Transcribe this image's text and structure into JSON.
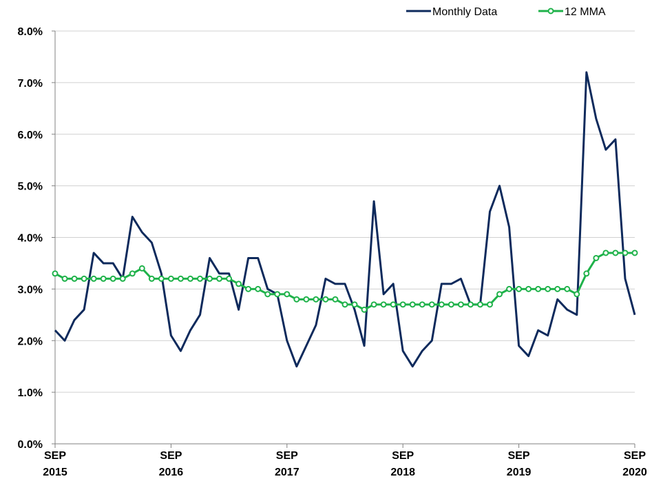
{
  "chart_data": {
    "type": "line",
    "categories": [
      "SEP 2015",
      null,
      null,
      null,
      null,
      null,
      null,
      null,
      null,
      null,
      null,
      null,
      "SEP 2016",
      null,
      null,
      null,
      null,
      null,
      null,
      null,
      null,
      null,
      null,
      null,
      "SEP 2017",
      null,
      null,
      null,
      null,
      null,
      null,
      null,
      null,
      null,
      null,
      null,
      "SEP 2018",
      null,
      null,
      null,
      null,
      null,
      null,
      null,
      null,
      null,
      null,
      null,
      "SEP 2019",
      null,
      null,
      null,
      null,
      null,
      null,
      null,
      null,
      null,
      null,
      null,
      "SEP 2020"
    ],
    "series": [
      {
        "name": "Monthly Data",
        "color": "#0e2a5c",
        "marker": false,
        "values": [
          2.2,
          2.0,
          2.4,
          2.6,
          3.7,
          3.5,
          3.5,
          3.2,
          4.4,
          4.1,
          3.9,
          3.3,
          2.1,
          1.8,
          2.2,
          2.5,
          3.6,
          3.3,
          3.3,
          2.6,
          3.6,
          3.6,
          3.0,
          2.9,
          2.0,
          1.5,
          1.9,
          2.3,
          3.2,
          3.1,
          3.1,
          2.6,
          1.9,
          4.7,
          2.9,
          3.1,
          1.8,
          1.5,
          1.8,
          2.0,
          3.1,
          3.1,
          3.2,
          2.7,
          2.7,
          4.5,
          5.0,
          4.2,
          1.9,
          1.7,
          2.2,
          2.1,
          2.8,
          2.6,
          2.5,
          7.2,
          6.3,
          5.7,
          5.9,
          3.2,
          2.5
        ]
      },
      {
        "name": "12 MMA",
        "color": "#1fb24a",
        "marker": true,
        "values": [
          3.3,
          3.2,
          3.2,
          3.2,
          3.2,
          3.2,
          3.2,
          3.2,
          3.3,
          3.4,
          3.2,
          3.2,
          3.2,
          3.2,
          3.2,
          3.2,
          3.2,
          3.2,
          3.2,
          3.1,
          3.0,
          3.0,
          2.9,
          2.9,
          2.9,
          2.8,
          2.8,
          2.8,
          2.8,
          2.8,
          2.7,
          2.7,
          2.6,
          2.7,
          2.7,
          2.7,
          2.7,
          2.7,
          2.7,
          2.7,
          2.7,
          2.7,
          2.7,
          2.7,
          2.7,
          2.7,
          2.9,
          3.0,
          3.0,
          3.0,
          3.0,
          3.0,
          3.0,
          3.0,
          2.9,
          3.3,
          3.6,
          3.7,
          3.7,
          3.7,
          3.7
        ]
      }
    ],
    "ylim": [
      0,
      8
    ],
    "yticks": [
      {
        "value": 0,
        "label": "0.0%"
      },
      {
        "value": 1,
        "label": "1.0%"
      },
      {
        "value": 2,
        "label": "2.0%"
      },
      {
        "value": 3,
        "label": "3.0%"
      },
      {
        "value": 4,
        "label": "4.0%"
      },
      {
        "value": 5,
        "label": "5.0%"
      },
      {
        "value": 6,
        "label": "6.0%"
      },
      {
        "value": 7,
        "label": "7.0%"
      },
      {
        "value": 8,
        "label": "8.0%"
      }
    ],
    "grid": true,
    "legend": "top-right"
  }
}
